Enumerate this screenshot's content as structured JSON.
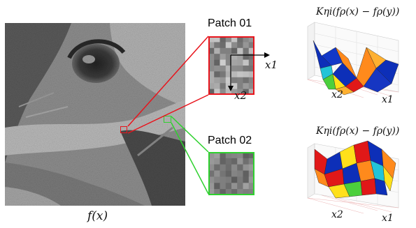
{
  "image_caption": "f(x)",
  "patches": [
    {
      "label": "Patch 01",
      "color": "#e8141c",
      "axis_x": "x1",
      "axis_y": "x2"
    },
    {
      "label": "Patch 02",
      "color": "#2ed12e"
    }
  ],
  "plots": [
    {
      "formula": "Kηi(fρ(x) − fρ(y))",
      "xlabel": "x1",
      "ylabel": "x2"
    },
    {
      "formula": "Kηi(fρ(x) − fρ(y))",
      "xlabel": "x1",
      "ylabel": "x2"
    }
  ],
  "colors": {
    "image_dark": "#3a3a3a",
    "image_light": "#a8a8a8",
    "surface_blue": "#0d2fb8",
    "surface_orange": "#ff8a1c",
    "surface_red": "#e01818",
    "surface_yellow": "#ffe01a",
    "surface_cyan": "#22c4d8",
    "surface_green": "#4ccf3c"
  }
}
